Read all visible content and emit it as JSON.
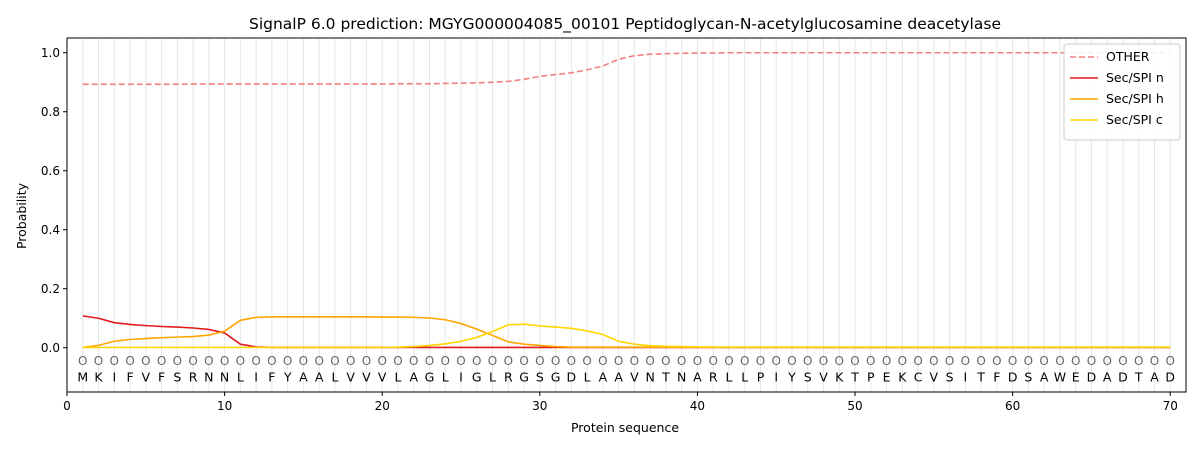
{
  "chart_data": {
    "type": "line",
    "title": "SignalP 6.0 prediction: MGYG000004085_00101 Peptidoglycan-N-acetylglucosamine deacetylase",
    "xlabel": "Protein sequence",
    "ylabel": "Probability",
    "xlim": [
      0,
      71
    ],
    "ylim": [
      -0.15,
      1.05
    ],
    "x_ticks": [
      0,
      10,
      20,
      30,
      40,
      50,
      60,
      70
    ],
    "y_ticks": [
      0.0,
      0.2,
      0.4,
      0.6,
      0.8,
      1.0
    ],
    "x_tick_labels": [
      "0",
      "10",
      "20",
      "30",
      "40",
      "50",
      "60",
      "70"
    ],
    "y_tick_labels": [
      "0.0",
      "0.2",
      "0.4",
      "0.6",
      "0.8",
      "1.0"
    ],
    "grid": "vertical lines at each residue",
    "legend_position": "top-right",
    "sequence": [
      "M",
      "K",
      "I",
      "F",
      "V",
      "F",
      "S",
      "R",
      "N",
      "N",
      "L",
      "I",
      "F",
      "Y",
      "A",
      "A",
      "L",
      "V",
      "V",
      "V",
      "L",
      "A",
      "G",
      "L",
      "I",
      "G",
      "L",
      "R",
      "G",
      "S",
      "G",
      "D",
      "L",
      "A",
      "A",
      "V",
      "N",
      "T",
      "N",
      "A",
      "R",
      "L",
      "L",
      "P",
      "I",
      "Y",
      "S",
      "V",
      "K",
      "T",
      "P",
      "E",
      "K",
      "C",
      "V",
      "S",
      "I",
      "T",
      "F",
      "D",
      "S",
      "A",
      "W",
      "E",
      "D",
      "A",
      "D",
      "T",
      "A",
      "D"
    ],
    "position_label": "O",
    "x": [
      1,
      2,
      3,
      4,
      5,
      6,
      7,
      8,
      9,
      10,
      11,
      12,
      13,
      14,
      15,
      16,
      17,
      18,
      19,
      20,
      21,
      22,
      23,
      24,
      25,
      26,
      27,
      28,
      29,
      30,
      31,
      32,
      33,
      34,
      35,
      36,
      37,
      38,
      39,
      40,
      41,
      42,
      43,
      44,
      45,
      46,
      47,
      48,
      49,
      50,
      51,
      52,
      53,
      54,
      55,
      56,
      57,
      58,
      59,
      60,
      61,
      62,
      63,
      64,
      65,
      66,
      67,
      68,
      69,
      70
    ],
    "series": [
      {
        "name": "OTHER",
        "color": "#f08080",
        "dash": "dashed",
        "values": [
          0.893,
          0.893,
          0.893,
          0.893,
          0.893,
          0.893,
          0.893,
          0.894,
          0.894,
          0.894,
          0.894,
          0.894,
          0.894,
          0.894,
          0.894,
          0.894,
          0.894,
          0.894,
          0.894,
          0.894,
          0.895,
          0.895,
          0.895,
          0.896,
          0.897,
          0.898,
          0.9,
          0.903,
          0.91,
          0.92,
          0.926,
          0.932,
          0.942,
          0.955,
          0.978,
          0.99,
          0.995,
          0.997,
          0.998,
          0.999,
          0.999,
          1.0,
          1.0,
          1.0,
          1.0,
          1.0,
          1.0,
          1.0,
          1.0,
          1.0,
          1.0,
          1.0,
          1.0,
          1.0,
          1.0,
          1.0,
          1.0,
          1.0,
          1.0,
          1.0,
          1.0,
          1.0,
          1.0,
          1.0,
          1.0,
          1.0,
          1.0,
          1.0,
          1.0,
          1.0
        ]
      },
      {
        "name": "Sec/SPI n",
        "color": "#e31a1c",
        "dash": "solid",
        "values": [
          0.108,
          0.1,
          0.085,
          0.079,
          0.075,
          0.072,
          0.07,
          0.067,
          0.062,
          0.05,
          0.012,
          0.003,
          0.001,
          0.001,
          0.001,
          0.001,
          0.001,
          0.001,
          0.001,
          0.001,
          0.001,
          0.001,
          0.001,
          0.001,
          0.001,
          0.001,
          0.001,
          0.001,
          0.001,
          0.001,
          0.001,
          0.001,
          0.001,
          0.001,
          0.001,
          0.001,
          0.001,
          0.001,
          0.001,
          0.001,
          0.001,
          0.001,
          0.001,
          0.001,
          0.001,
          0.001,
          0.001,
          0.001,
          0.001,
          0.001,
          0.001,
          0.001,
          0.001,
          0.001,
          0.001,
          0.001,
          0.001,
          0.001,
          0.001,
          0.001,
          0.001,
          0.001,
          0.001,
          0.001,
          0.001,
          0.001,
          0.001,
          0.001,
          0.001,
          0.001
        ]
      },
      {
        "name": "Sec/SPI h",
        "color": "#ffa500",
        "dash": "solid",
        "values": [
          0.001,
          0.008,
          0.022,
          0.028,
          0.031,
          0.034,
          0.036,
          0.038,
          0.043,
          0.056,
          0.093,
          0.103,
          0.105,
          0.105,
          0.105,
          0.105,
          0.105,
          0.105,
          0.105,
          0.104,
          0.104,
          0.103,
          0.101,
          0.095,
          0.082,
          0.063,
          0.042,
          0.02,
          0.012,
          0.008,
          0.004,
          0.002,
          0.002,
          0.002,
          0.002,
          0.002,
          0.002,
          0.002,
          0.002,
          0.002,
          0.002,
          0.002,
          0.002,
          0.002,
          0.002,
          0.002,
          0.002,
          0.002,
          0.002,
          0.002,
          0.002,
          0.002,
          0.002,
          0.002,
          0.002,
          0.002,
          0.002,
          0.002,
          0.002,
          0.002,
          0.002,
          0.002,
          0.002,
          0.002,
          0.002,
          0.002,
          0.002,
          0.002,
          0.002,
          0.002
        ]
      },
      {
        "name": "Sec/SPI c",
        "color": "#ffd700",
        "dash": "solid",
        "values": [
          0.001,
          0.001,
          0.001,
          0.001,
          0.001,
          0.001,
          0.001,
          0.001,
          0.001,
          0.001,
          0.001,
          0.001,
          0.001,
          0.001,
          0.001,
          0.001,
          0.001,
          0.001,
          0.001,
          0.001,
          0.002,
          0.004,
          0.008,
          0.013,
          0.022,
          0.035,
          0.055,
          0.078,
          0.08,
          0.074,
          0.07,
          0.066,
          0.057,
          0.045,
          0.022,
          0.012,
          0.007,
          0.005,
          0.004,
          0.003,
          0.002,
          0.002,
          0.002,
          0.002,
          0.002,
          0.002,
          0.002,
          0.002,
          0.002,
          0.002,
          0.002,
          0.002,
          0.002,
          0.002,
          0.002,
          0.002,
          0.002,
          0.002,
          0.002,
          0.002,
          0.002,
          0.002,
          0.002,
          0.002,
          0.002,
          0.002,
          0.002,
          0.002,
          0.002,
          0.002
        ]
      }
    ]
  }
}
